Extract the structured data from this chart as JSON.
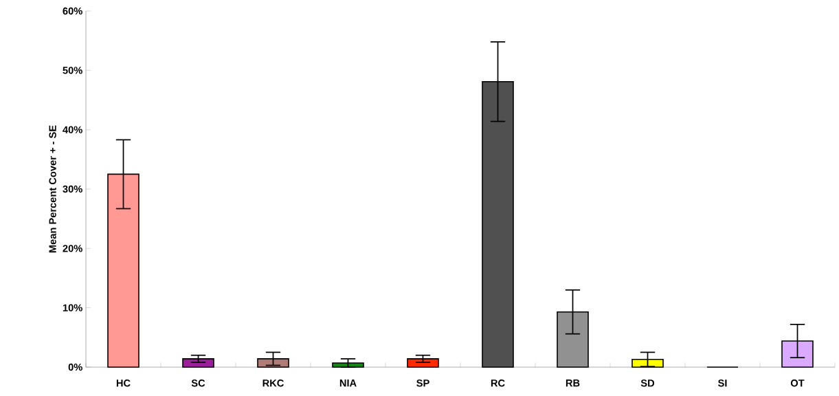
{
  "chart_data": {
    "type": "bar",
    "ylabel": "Mean Percent Cover + - SE",
    "categories": [
      "HC",
      "SC",
      "RKC",
      "NIA",
      "SP",
      "RC",
      "RB",
      "SD",
      "SI",
      "OT"
    ],
    "values": [
      32.5,
      1.4,
      1.4,
      0.7,
      1.4,
      48.1,
      9.3,
      1.3,
      0,
      4.4
    ],
    "errors": [
      5.8,
      0.6,
      1.1,
      0.7,
      0.6,
      6.7,
      3.7,
      1.2,
      null,
      2.8
    ],
    "colors": [
      "#ff9994",
      "#9b1f9b",
      "#b07c78",
      "#118811",
      "#ff2a00",
      "#505050",
      "#919191",
      "#ffff00",
      "#ffffff",
      "#d9aaff"
    ],
    "ylim": [
      0,
      60
    ],
    "yticks": [
      {
        "value": 0,
        "label": "0%"
      },
      {
        "value": 10,
        "label": "10%"
      },
      {
        "value": 20,
        "label": "20%"
      },
      {
        "value": 30,
        "label": "30%"
      },
      {
        "value": 40,
        "label": "40%"
      },
      {
        "value": 50,
        "label": "50%"
      },
      {
        "value": 60,
        "label": "60%"
      }
    ],
    "grid": false
  }
}
